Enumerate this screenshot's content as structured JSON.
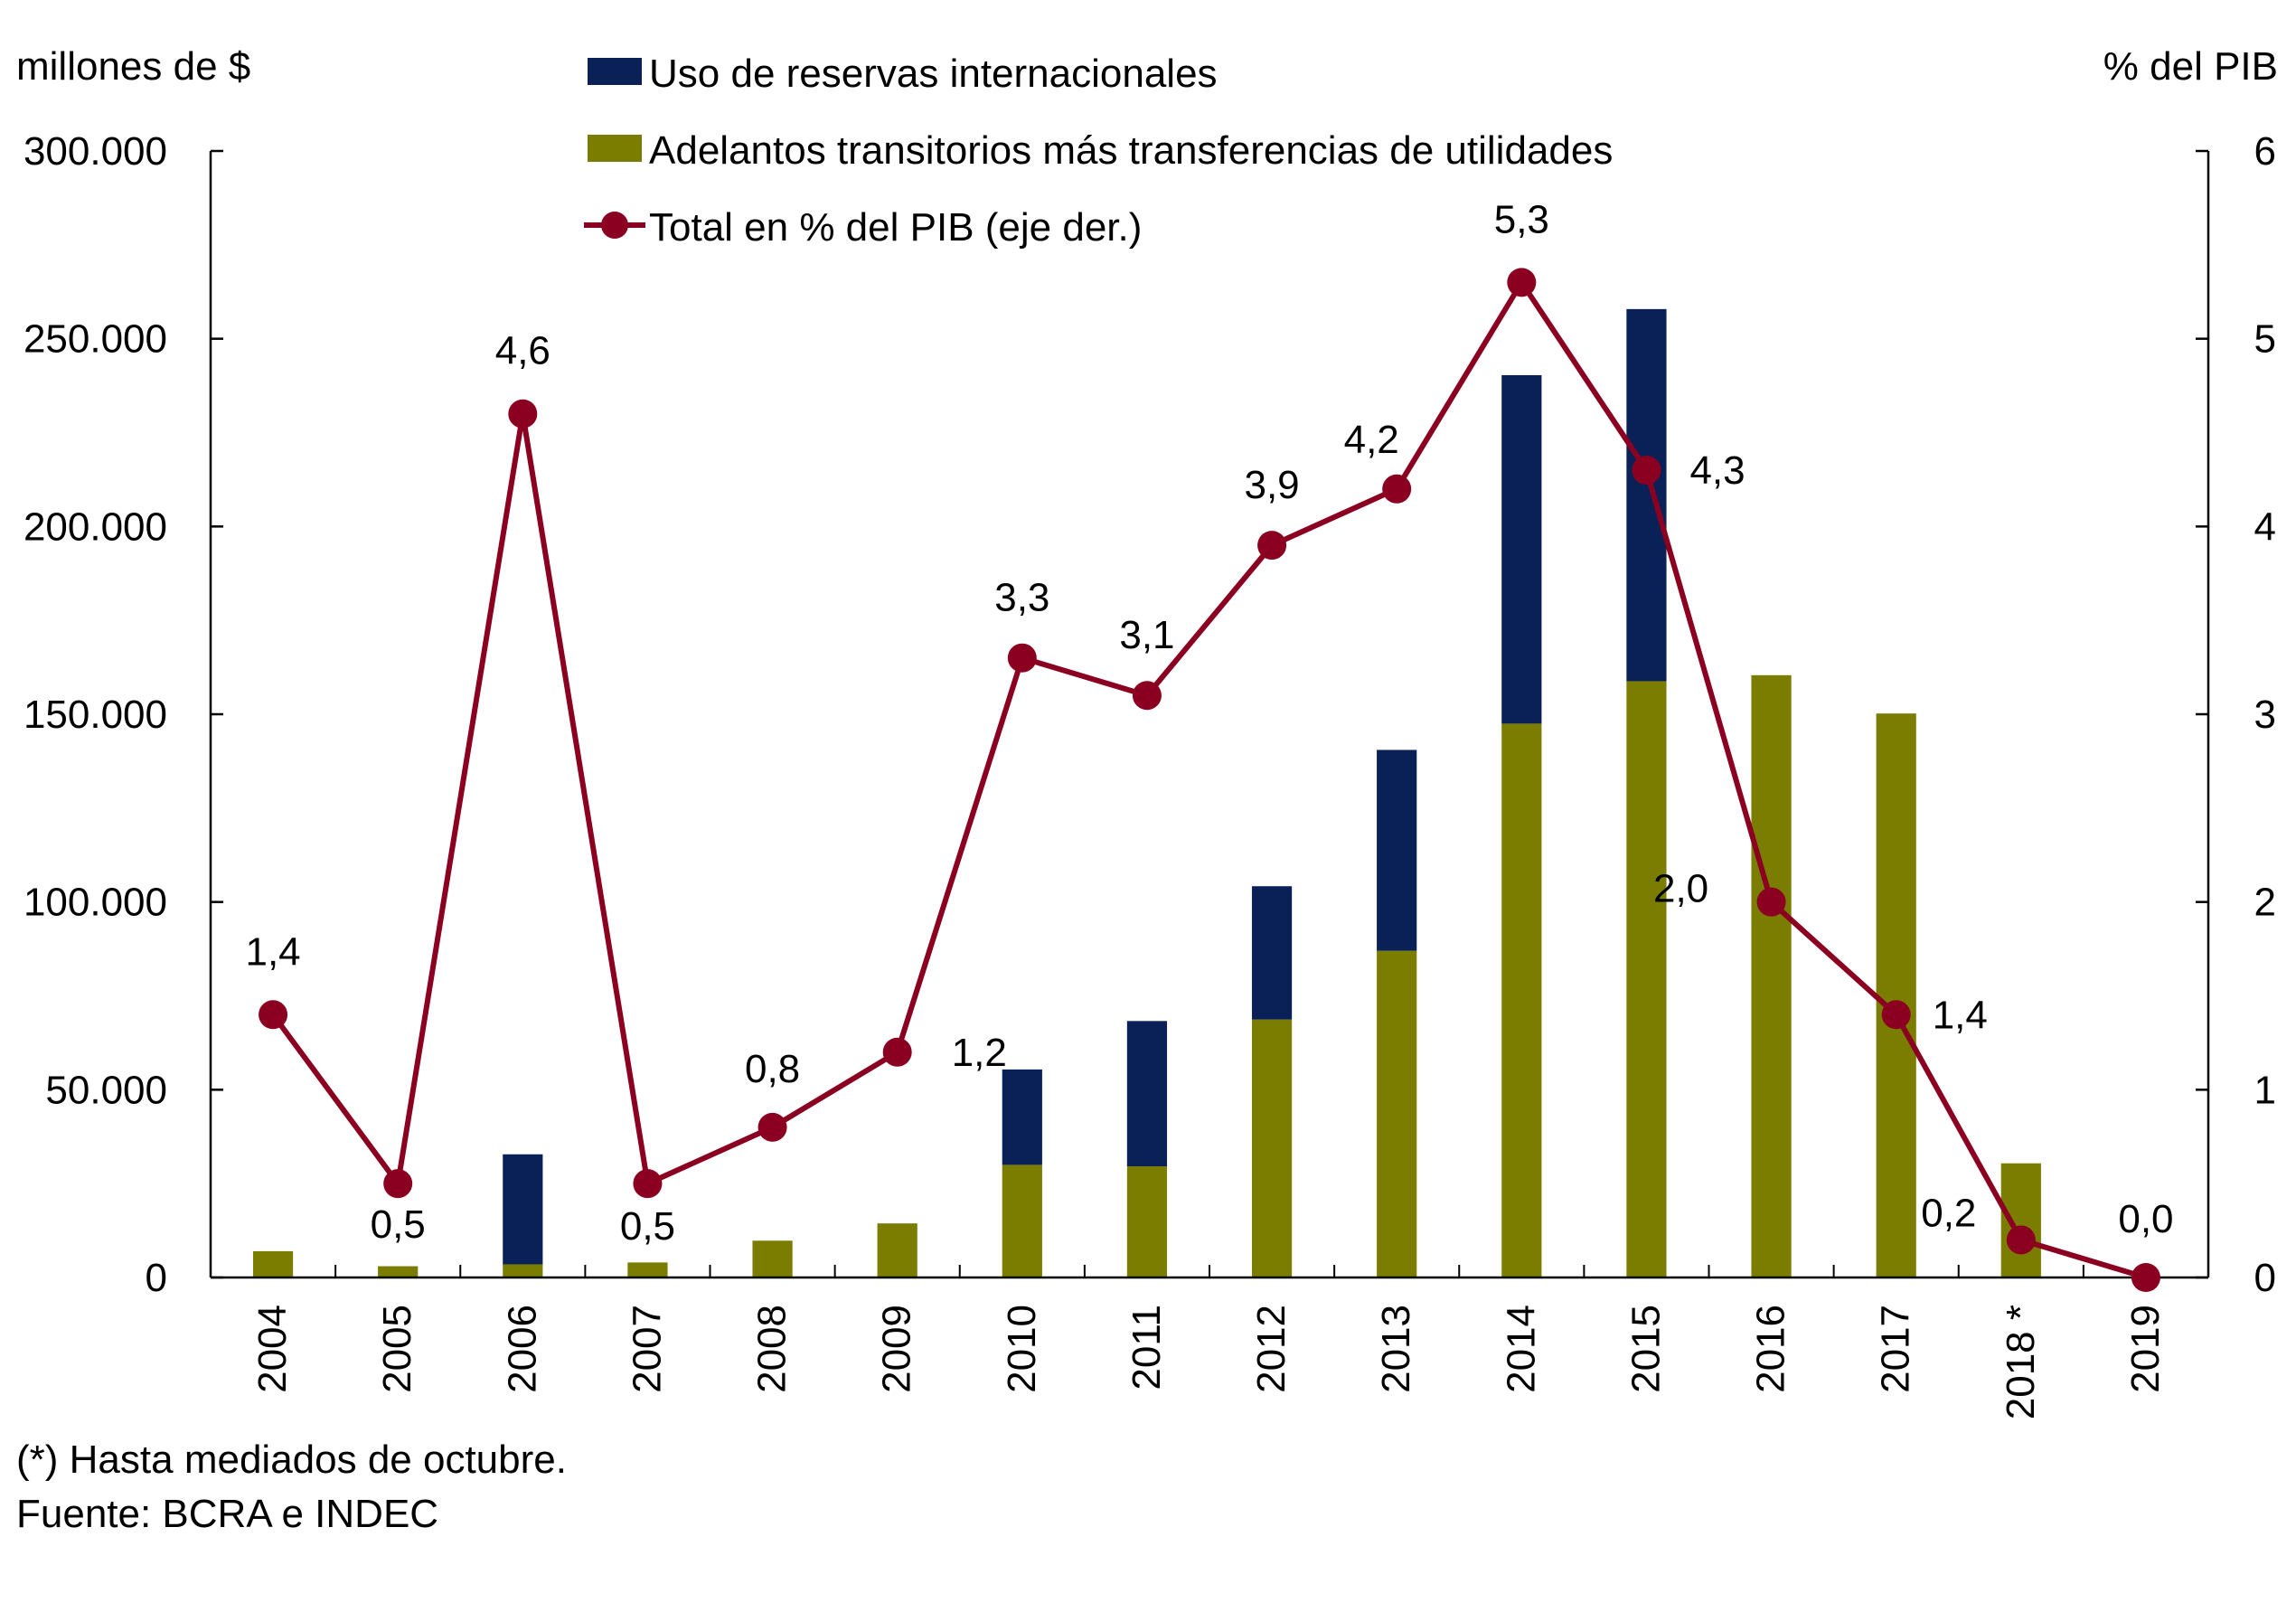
{
  "chart_data": {
    "type": "bar",
    "title": "",
    "ylabel_left": "millones de $",
    "ylabel_right": "% del PIB",
    "categories": [
      "2004",
      "2005",
      "2006",
      "2007",
      "2008",
      "2009",
      "2010",
      "2011",
      "2012",
      "2013",
      "2014",
      "2015",
      "2016",
      "2017",
      "2018 *",
      "2019"
    ],
    "stacked": true,
    "series": [
      {
        "name": "Adelantos transitorios más transferencias de utilidades",
        "type": "bar",
        "axis": "left",
        "color": "#7a7d00",
        "values": [
          7000,
          3000,
          3500,
          4000,
          9800,
          14400,
          30000,
          29600,
          68700,
          87000,
          147500,
          158800,
          160400,
          150200,
          30400,
          0
        ]
      },
      {
        "name": "Uso de reservas internacionales",
        "type": "bar",
        "axis": "left",
        "color": "#0a2158",
        "values": [
          0,
          0,
          29300,
          0,
          0,
          0,
          25400,
          38700,
          35500,
          53500,
          92800,
          99100,
          0,
          0,
          0,
          0
        ]
      },
      {
        "name": "Total en % del PIB (eje der.)",
        "type": "line",
        "axis": "right",
        "color": "#8b0020",
        "values": [
          1.4,
          0.5,
          4.6,
          0.5,
          0.8,
          1.2,
          3.3,
          3.1,
          3.9,
          4.2,
          5.3,
          4.3,
          2.0,
          1.4,
          0.2,
          0.0
        ],
        "labels": [
          "1,4",
          "0,5",
          "4,6",
          "0,5",
          "0,8",
          "1,2",
          "3,3",
          "3,1",
          "3,9",
          "4,2",
          "5,3",
          "4,3",
          "2,0",
          "1,4",
          "0,2",
          "0,0"
        ]
      }
    ],
    "legend_order": [
      1,
      0,
      2
    ],
    "ylim_left": [
      0,
      300000
    ],
    "ylim_right": [
      0,
      6
    ],
    "yticks_left": [
      "0",
      "50.000",
      "100.000",
      "150.000",
      "200.000",
      "250.000",
      "300.000"
    ],
    "yticks_right": [
      "0",
      "1",
      "2",
      "3",
      "4",
      "5",
      "6"
    ],
    "grid": false,
    "legend_position": "top-center"
  },
  "notes": {
    "footnote": "(*) Hasta mediados de octubre.",
    "source": "Fuente: BCRA e INDEC"
  }
}
